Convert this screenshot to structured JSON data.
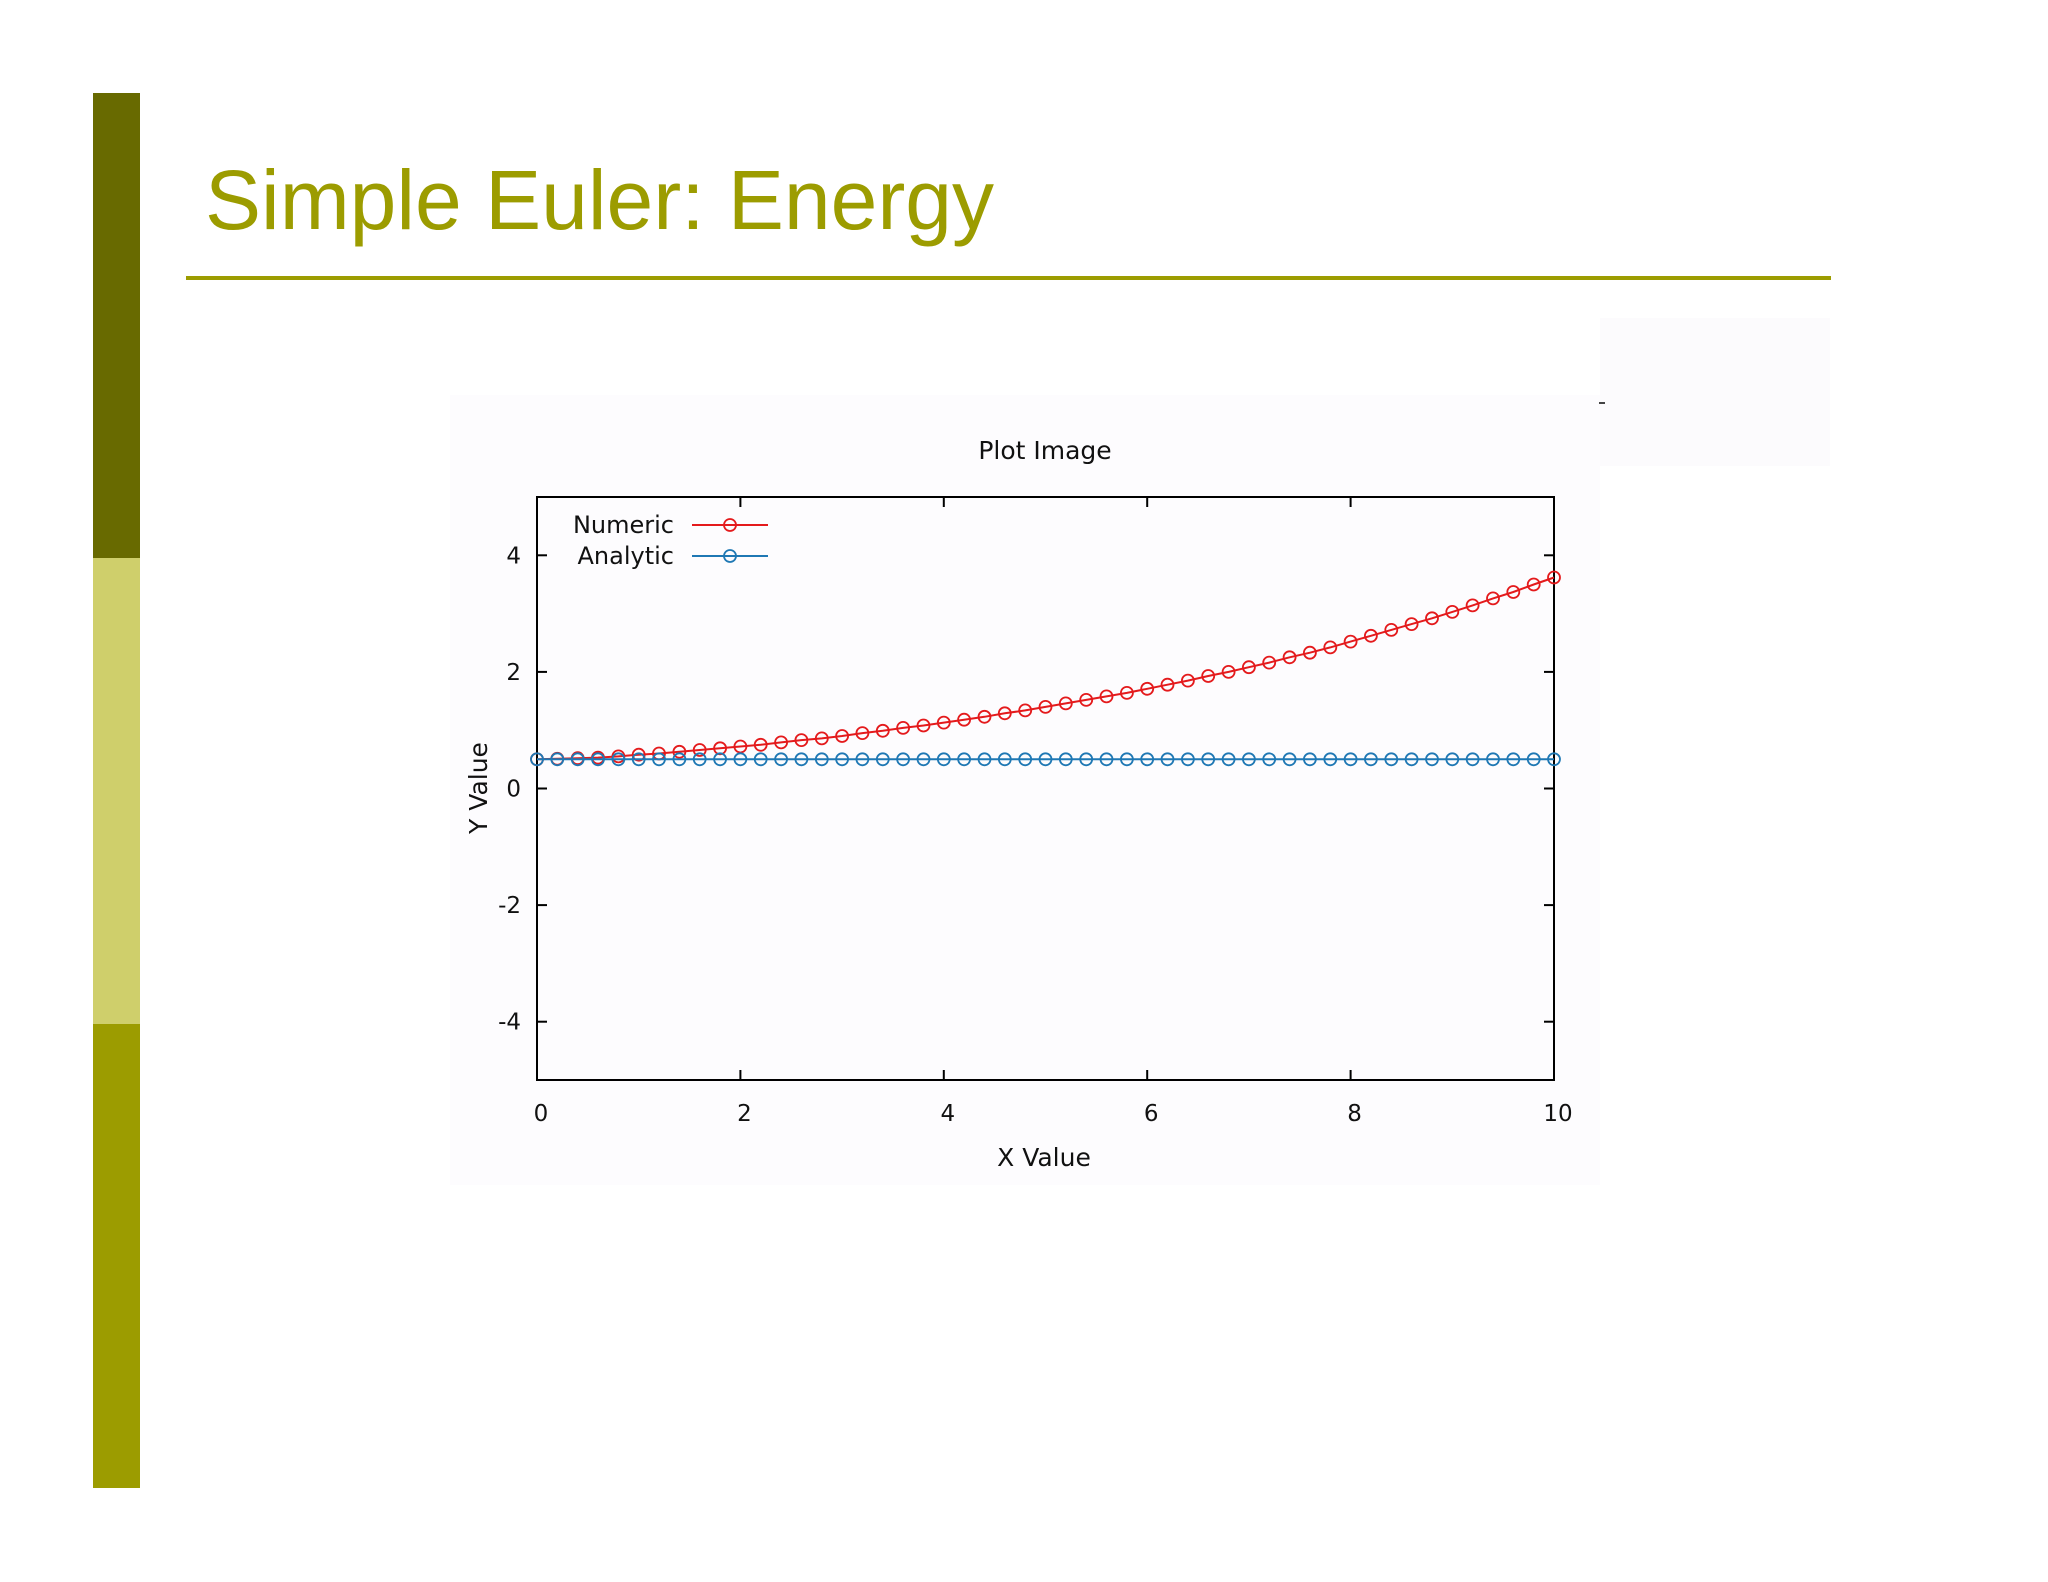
{
  "slide": {
    "title": "Simple Euler: Energy"
  },
  "colors": {
    "sidebar_dark": "#686a00",
    "sidebar_light": "#cfcf6b",
    "sidebar_mid": "#9c9c00",
    "title": "#9c9c00",
    "numeric": "#e41a1c",
    "analytic": "#1f78b4"
  },
  "chart_data": {
    "type": "line",
    "title": "Plot Image",
    "xlabel": "X Value",
    "ylabel": "Y Value",
    "xlim": [
      0,
      10
    ],
    "ylim": [
      -5,
      5
    ],
    "xticks": [
      0,
      2,
      4,
      6,
      8,
      10
    ],
    "yticks": [
      -4,
      -2,
      0,
      2,
      4
    ],
    "xtick_labels": [
      "0",
      "2",
      "4",
      "6",
      "8",
      "10"
    ],
    "ytick_labels": [
      "-4",
      "-2",
      "0",
      "2",
      "4"
    ],
    "grid": false,
    "legend_position": "top-left",
    "marker": "open-circle",
    "x": [
      0,
      0.2,
      0.4,
      0.6,
      0.8,
      1.0,
      1.2,
      1.4,
      1.6,
      1.8,
      2.0,
      2.2,
      2.4,
      2.6,
      2.8,
      3.0,
      3.2,
      3.4,
      3.6,
      3.8,
      4.0,
      4.2,
      4.4,
      4.6,
      4.8,
      5.0,
      5.2,
      5.4,
      5.6,
      5.8,
      6.0,
      6.2,
      6.4,
      6.6,
      6.8,
      7.0,
      7.2,
      7.4,
      7.6,
      7.8,
      8.0,
      8.2,
      8.4,
      8.6,
      8.8,
      9.0,
      9.2,
      9.4,
      9.6,
      9.8,
      10.0
    ],
    "series": [
      {
        "name": "Numeric",
        "color": "#e41a1c",
        "values": [
          0.5,
          0.51,
          0.52,
          0.53,
          0.55,
          0.58,
          0.6,
          0.63,
          0.66,
          0.69,
          0.72,
          0.75,
          0.79,
          0.83,
          0.86,
          0.9,
          0.95,
          0.99,
          1.04,
          1.08,
          1.13,
          1.18,
          1.23,
          1.29,
          1.34,
          1.4,
          1.46,
          1.52,
          1.58,
          1.64,
          1.71,
          1.78,
          1.85,
          1.93,
          2.0,
          2.08,
          2.16,
          2.25,
          2.33,
          2.42,
          2.52,
          2.62,
          2.72,
          2.82,
          2.92,
          3.03,
          3.14,
          3.26,
          3.37,
          3.5,
          3.62
        ]
      },
      {
        "name": "Analytic",
        "color": "#1f78b4",
        "values": [
          0.5,
          0.5,
          0.5,
          0.5,
          0.5,
          0.5,
          0.5,
          0.5,
          0.5,
          0.5,
          0.5,
          0.5,
          0.5,
          0.5,
          0.5,
          0.5,
          0.5,
          0.5,
          0.5,
          0.5,
          0.5,
          0.5,
          0.5,
          0.5,
          0.5,
          0.5,
          0.5,
          0.5,
          0.5,
          0.5,
          0.5,
          0.5,
          0.5,
          0.5,
          0.5,
          0.5,
          0.5,
          0.5,
          0.5,
          0.5,
          0.5,
          0.5,
          0.5,
          0.5,
          0.5,
          0.5,
          0.5,
          0.5,
          0.5,
          0.5,
          0.5
        ]
      }
    ]
  }
}
